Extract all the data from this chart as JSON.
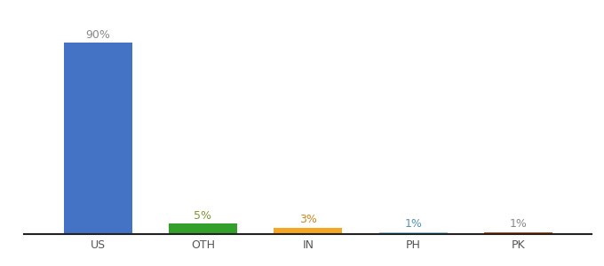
{
  "categories": [
    "US",
    "OTH",
    "IN",
    "PH",
    "PK"
  ],
  "values": [
    90,
    5,
    3,
    1,
    1
  ],
  "bar_colors": [
    "#4472c4",
    "#33a02c",
    "#f5a623",
    "#87ceeb",
    "#b5541c"
  ],
  "labels": [
    "90%",
    "5%",
    "3%",
    "1%",
    "1%"
  ],
  "label_colors": [
    "#888888",
    "#7a9a30",
    "#c88820",
    "#5890b0",
    "#888888"
  ],
  "ylim": [
    0,
    100
  ],
  "background_color": "#ffffff",
  "bar_width": 0.65,
  "figsize": [
    6.8,
    3.0
  ],
  "dpi": 100
}
